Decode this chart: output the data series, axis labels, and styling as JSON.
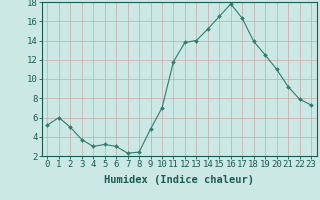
{
  "x": [
    0,
    1,
    2,
    3,
    4,
    5,
    6,
    7,
    8,
    9,
    10,
    11,
    12,
    13,
    14,
    15,
    16,
    17,
    18,
    19,
    20,
    21,
    22,
    23
  ],
  "y": [
    5.2,
    6.0,
    5.0,
    3.7,
    3.0,
    3.2,
    3.0,
    2.3,
    2.4,
    4.8,
    7.0,
    11.8,
    13.8,
    14.0,
    15.2,
    16.5,
    17.8,
    16.3,
    13.9,
    12.5,
    11.0,
    9.2,
    7.9,
    7.3
  ],
  "line_color": "#2e7d6e",
  "marker": "D",
  "marker_size": 2.0,
  "bg_color": "#cce8e4",
  "grid_color": "#b0cfcc",
  "xlabel": "Humidex (Indice chaleur)",
  "xlim": [
    -0.5,
    23.5
  ],
  "ylim": [
    2,
    18
  ],
  "yticks": [
    2,
    4,
    6,
    8,
    10,
    12,
    14,
    16,
    18
  ],
  "xtick_labels": [
    "0",
    "1",
    "2",
    "3",
    "4",
    "5",
    "6",
    "7",
    "8",
    "9",
    "10",
    "11",
    "12",
    "13",
    "14",
    "15",
    "16",
    "17",
    "18",
    "19",
    "20",
    "21",
    "22",
    "23"
  ],
  "font_color": "#1a5c52",
  "tick_fontsize": 6.5,
  "xlabel_fontsize": 7.5
}
